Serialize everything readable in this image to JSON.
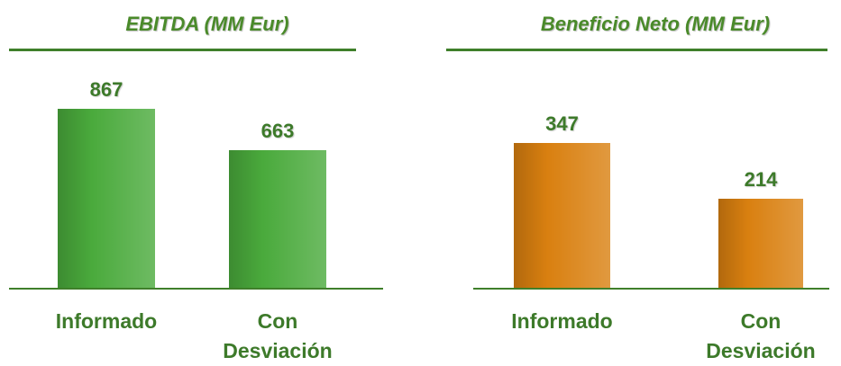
{
  "chart_data": [
    {
      "type": "bar",
      "title": "EBITDA (MM Eur)",
      "categories": [
        "Informado",
        "Con Desviación"
      ],
      "values": [
        867,
        663
      ],
      "color": "#4aaa3c",
      "ylim": [
        0,
        1130
      ]
    },
    {
      "type": "bar",
      "title": "Beneficio Neto (MM Eur)",
      "categories": [
        "Informado",
        "Con Desviación"
      ],
      "values": [
        347,
        214
      ],
      "color": "#d98010",
      "ylim": [
        0,
        560
      ]
    }
  ]
}
